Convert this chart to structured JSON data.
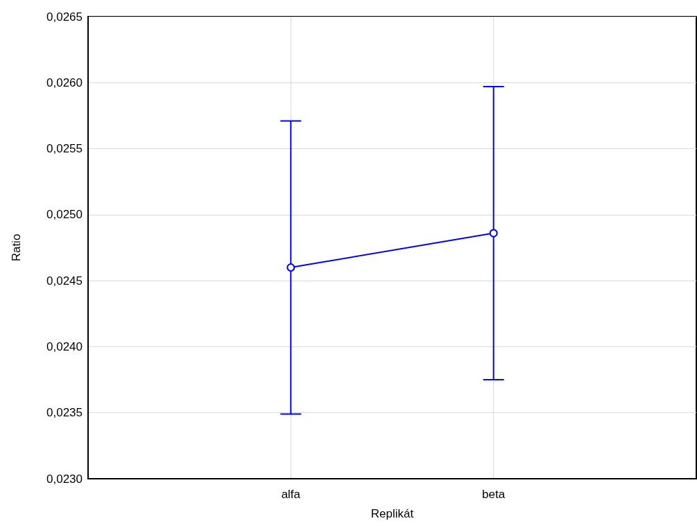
{
  "chart_data": {
    "type": "line",
    "xlabel": "Replikát",
    "ylabel": "Ratio",
    "categories": [
      "alfa",
      "beta"
    ],
    "series": [
      {
        "color": "#0000ff",
        "values": [
          0.0246,
          0.02486
        ],
        "errors": [
          0.00111,
          0.00111
        ]
      }
    ],
    "ylim": [
      0.023,
      0.0265
    ],
    "yticks": [
      {
        "value": 0.023,
        "label": "0,0230"
      },
      {
        "value": 0.0235,
        "label": "0,0235"
      },
      {
        "value": 0.024,
        "label": "0,0240"
      },
      {
        "value": 0.0245,
        "label": "0,0245"
      },
      {
        "value": 0.025,
        "label": "0,0250"
      },
      {
        "value": 0.0255,
        "label": "0,0255"
      },
      {
        "value": 0.026,
        "label": "0,0260"
      },
      {
        "value": 0.0265,
        "label": "0,0265"
      }
    ],
    "grid": true,
    "marker": "circle",
    "line_style": "solid"
  }
}
